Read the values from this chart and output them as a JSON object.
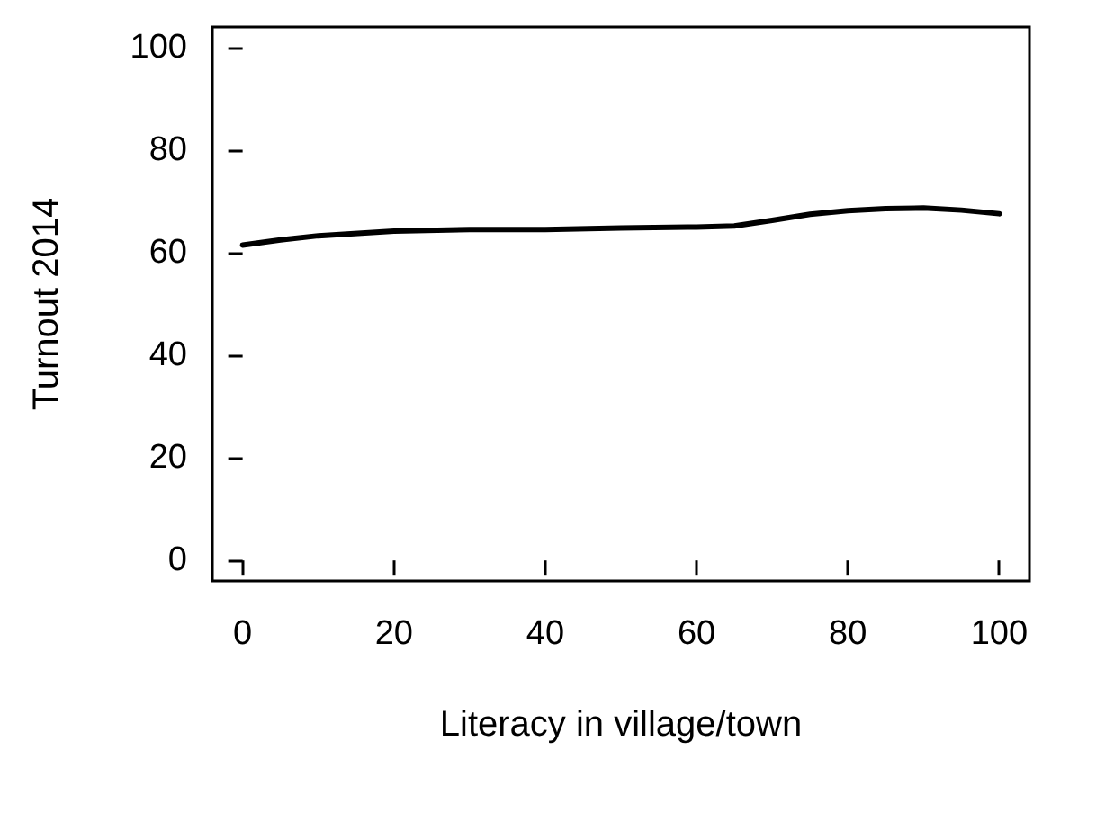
{
  "chart_data": {
    "type": "line",
    "xlabel": "Literacy in village/town",
    "ylabel": "Turnout 2014",
    "xlim": [
      -4,
      104
    ],
    "ylim": [
      -4,
      104
    ],
    "xticks": [
      0,
      20,
      40,
      60,
      80,
      100
    ],
    "yticks": [
      0,
      20,
      40,
      60,
      80,
      100
    ],
    "grid": false,
    "series": [
      {
        "color": "#000000",
        "x": [
          0,
          5,
          10,
          20,
          30,
          40,
          50,
          60,
          65,
          70,
          75,
          80,
          85,
          90,
          95,
          100
        ],
        "values": [
          61.5,
          62.5,
          63.3,
          64.2,
          64.5,
          64.5,
          64.8,
          65,
          65.2,
          66.3,
          67.5,
          68.2,
          68.6,
          68.7,
          68.3,
          67.6
        ]
      }
    ]
  }
}
